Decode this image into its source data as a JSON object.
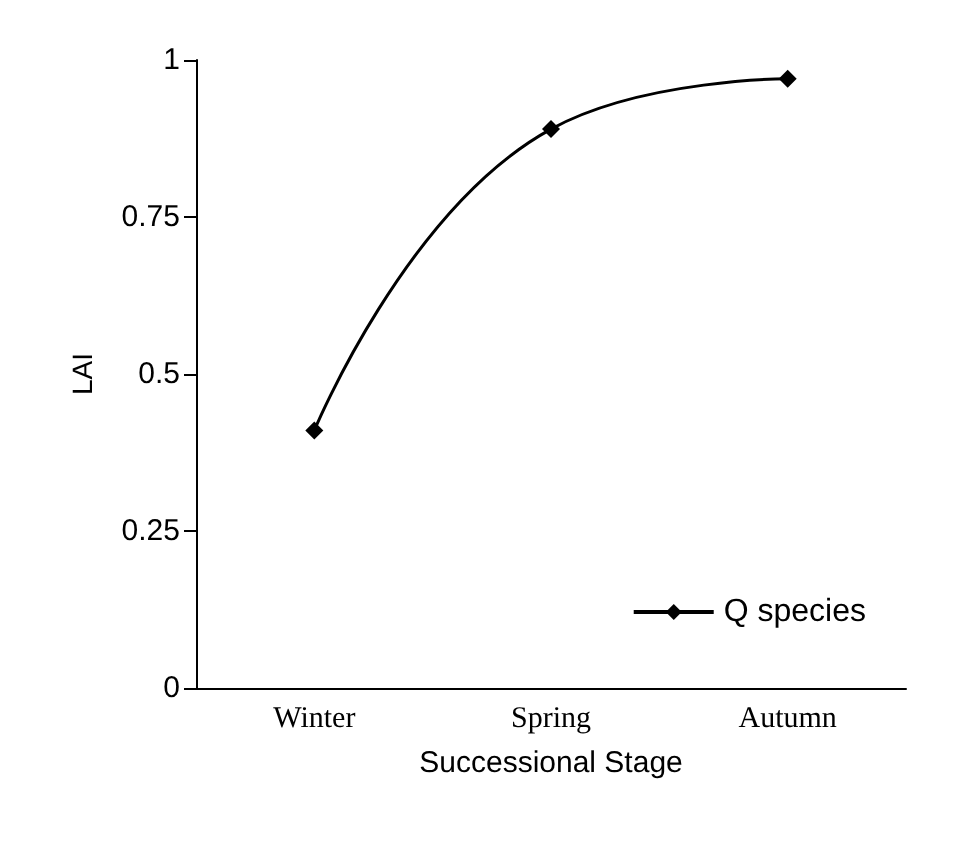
{
  "chart_data": {
    "type": "line",
    "xlabel": "Successional Stage",
    "ylabel": "LAI",
    "categories": [
      "Winter",
      "Spring",
      "Autumn"
    ],
    "series": [
      {
        "name": "Q species",
        "color": "#000000",
        "values": [
          0.41,
          0.89,
          0.97
        ]
      }
    ],
    "ylim": [
      0,
      1
    ],
    "yticks": [
      0,
      0.25,
      0.5,
      0.75,
      1
    ],
    "grid": false,
    "legend": "bottom right",
    "marker": "diamond",
    "line_style": "solid"
  }
}
